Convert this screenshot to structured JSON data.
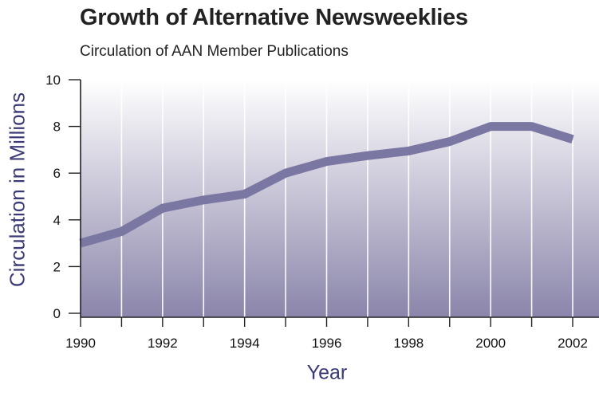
{
  "colors": {
    "accent": "#3b3a78",
    "line": "#7b77a3",
    "gradient_top": "#ffffff",
    "gradient_bottom": "#8a85aa",
    "axis": "#222222"
  },
  "chart_data": {
    "type": "line",
    "title": "Growth of Alternative Newsweeklies",
    "subtitle": "Circulation of AAN Member Publications",
    "xlabel": "Year",
    "ylabel": "Circulation in Millions",
    "xlim": [
      1990,
      2002
    ],
    "ylim": [
      0,
      10
    ],
    "x_ticks": [
      1990,
      1991,
      1992,
      1993,
      1994,
      1995,
      1996,
      1997,
      1998,
      1999,
      2000,
      2001,
      2002
    ],
    "x_tick_labels": [
      "1990",
      "1992",
      "1994",
      "1996",
      "1998",
      "2000",
      "2002"
    ],
    "y_ticks": [
      0,
      2,
      4,
      6,
      8,
      10
    ],
    "y_tick_labels": [
      "0",
      "2",
      "4",
      "6",
      "8",
      "10"
    ],
    "grid": "vertical",
    "legend": "none",
    "series": [
      {
        "x": [
          1990,
          1991,
          1992,
          1993,
          1994,
          1995,
          1996,
          1997,
          1998,
          1999,
          2000,
          2001,
          2002
        ],
        "values": [
          3.0,
          3.5,
          4.5,
          4.85,
          5.1,
          6.0,
          6.5,
          6.75,
          6.95,
          7.35,
          8.0,
          8.0,
          7.45
        ]
      }
    ]
  }
}
